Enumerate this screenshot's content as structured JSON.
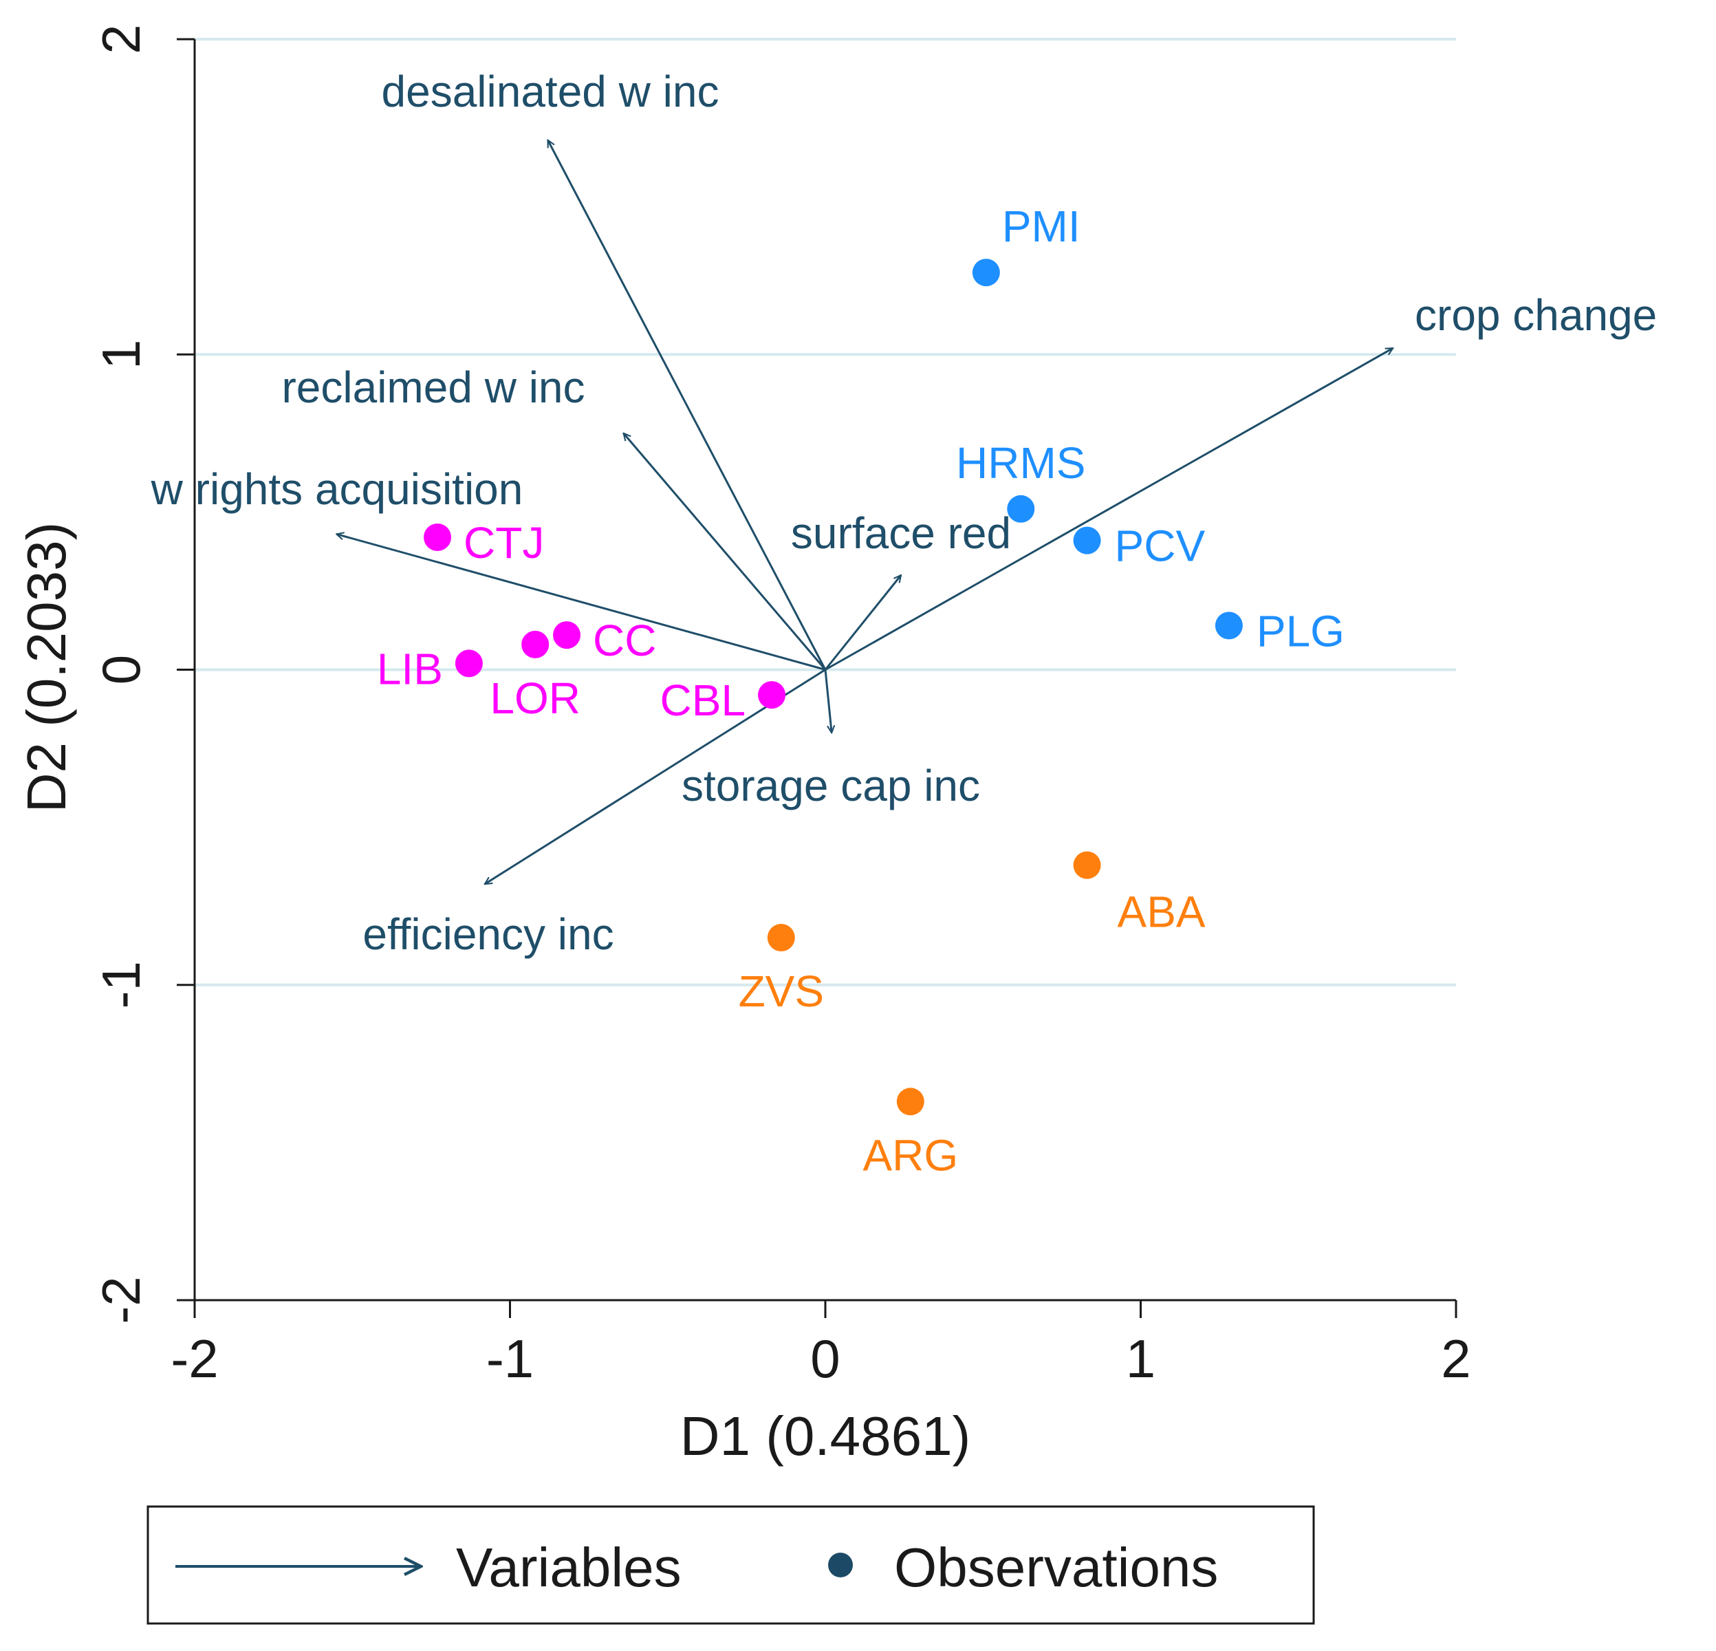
{
  "chart_data": {
    "type": "scatter",
    "subtype": "biplot",
    "xlabel": "D1 (0.4861)",
    "ylabel": "D2 (0.2033)",
    "xlim": [
      -2,
      2
    ],
    "ylim": [
      -2,
      2
    ],
    "xticks": [
      "-2",
      "-1",
      "0",
      "1",
      "2"
    ],
    "yticks": [
      "-2",
      "-1",
      "0",
      "1",
      "2"
    ],
    "grid": "horizontal",
    "colors": {
      "grid": "#d6e9ee",
      "axis": "#1a1a1a",
      "variables": "#1f4e69",
      "group_magenta": "#ff00ff",
      "group_blue": "#1e8fff",
      "group_orange": "#ff7f0e",
      "legend_dot": "#1c4a66"
    },
    "variables": [
      {
        "name": "desalinated w inc",
        "x": -0.88,
        "y": 1.68
      },
      {
        "name": "crop change",
        "x": 1.8,
        "y": 1.02
      },
      {
        "name": "reclaimed w inc",
        "x": -0.64,
        "y": 0.75
      },
      {
        "name": "w rights acquisition",
        "x": -1.55,
        "y": 0.43
      },
      {
        "name": "surface red",
        "x": 0.24,
        "y": 0.3
      },
      {
        "name": "storage cap inc",
        "x": 0.02,
        "y": -0.2
      },
      {
        "name": "efficiency inc",
        "x": -1.08,
        "y": -0.68
      }
    ],
    "observations": [
      {
        "name": "PMI",
        "x": 0.51,
        "y": 1.26,
        "group": "blue"
      },
      {
        "name": "HRMS",
        "x": 0.62,
        "y": 0.51,
        "group": "blue"
      },
      {
        "name": "PCV",
        "x": 0.83,
        "y": 0.41,
        "group": "blue"
      },
      {
        "name": "PLG",
        "x": 1.28,
        "y": 0.14,
        "group": "blue"
      },
      {
        "name": "CTJ",
        "x": -1.23,
        "y": 0.42,
        "group": "magenta"
      },
      {
        "name": "CC",
        "x": -0.82,
        "y": 0.11,
        "group": "magenta"
      },
      {
        "name": "LIB",
        "x": -1.13,
        "y": 0.02,
        "group": "magenta"
      },
      {
        "name": "LOR",
        "x": -0.92,
        "y": 0.08,
        "group": "magenta"
      },
      {
        "name": "CBL",
        "x": -0.17,
        "y": -0.08,
        "group": "magenta"
      },
      {
        "name": "ABA",
        "x": 0.83,
        "y": -0.62,
        "group": "orange"
      },
      {
        "name": "ZVS",
        "x": -0.14,
        "y": -0.85,
        "group": "orange"
      },
      {
        "name": "ARG",
        "x": 0.27,
        "y": -1.37,
        "group": "orange"
      }
    ],
    "legend": {
      "position": "bottom",
      "entries": [
        {
          "label": "Variables",
          "kind": "arrow"
        },
        {
          "label": "Observations",
          "kind": "dot"
        }
      ]
    }
  }
}
